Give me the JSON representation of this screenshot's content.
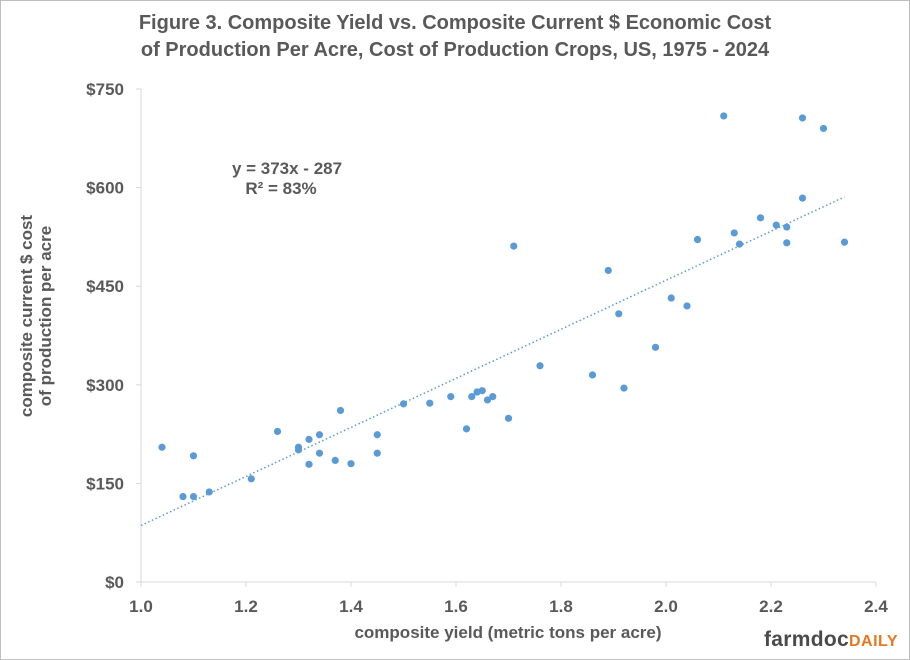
{
  "chart_data": {
    "type": "scatter",
    "title_lines": [
      "Figure  3. Composite  Yield  vs. Composite  Current  $ Economic  Cost",
      "of  Production  Per Acre,  Cost of Production  Crops,  US, 1975  -  2024"
    ],
    "xlabel": "composite yield (metric tons per acre)",
    "ylabel_lines": [
      "composite current $ cost",
      "of production per acre"
    ],
    "xlim": [
      1.0,
      2.4
    ],
    "ylim": [
      0,
      750
    ],
    "x_ticks": [
      1.0,
      1.2,
      1.4,
      1.6,
      1.8,
      2.0,
      2.2,
      2.4
    ],
    "x_tick_labels": [
      "1.0",
      "1.2",
      "1.4",
      "1.6",
      "1.8",
      "2.0",
      "2.2",
      "2.4"
    ],
    "y_ticks": [
      0,
      150,
      300,
      450,
      600,
      750
    ],
    "y_tick_labels": [
      "$0",
      "$150",
      "$300",
      "$450",
      "$600",
      "$750"
    ],
    "point_color": "#5b9bd5",
    "trend_color": "#5b9bd5",
    "trendline": {
      "slope": 373,
      "intercept": -287,
      "x_range": [
        1.0,
        2.34
      ]
    },
    "equation_lines": [
      "y = 373x - 287",
      "R² = 83%"
    ],
    "points": [
      [
        1.04,
        205
      ],
      [
        1.08,
        130
      ],
      [
        1.1,
        192
      ],
      [
        1.1,
        130
      ],
      [
        1.13,
        137
      ],
      [
        1.21,
        157
      ],
      [
        1.26,
        229
      ],
      [
        1.3,
        205
      ],
      [
        1.3,
        201
      ],
      [
        1.32,
        217
      ],
      [
        1.32,
        179
      ],
      [
        1.34,
        224
      ],
      [
        1.34,
        196
      ],
      [
        1.37,
        185
      ],
      [
        1.38,
        261
      ],
      [
        1.4,
        180
      ],
      [
        1.45,
        224
      ],
      [
        1.45,
        196
      ],
      [
        1.5,
        271
      ],
      [
        1.55,
        272
      ],
      [
        1.59,
        282
      ],
      [
        1.62,
        233
      ],
      [
        1.63,
        282
      ],
      [
        1.64,
        289
      ],
      [
        1.65,
        291
      ],
      [
        1.66,
        277
      ],
      [
        1.67,
        282
      ],
      [
        1.7,
        249
      ],
      [
        1.71,
        511
      ],
      [
        1.76,
        329
      ],
      [
        1.86,
        315
      ],
      [
        1.89,
        474
      ],
      [
        1.91,
        408
      ],
      [
        1.92,
        295
      ],
      [
        1.98,
        357
      ],
      [
        2.01,
        432
      ],
      [
        2.04,
        420
      ],
      [
        2.06,
        521
      ],
      [
        2.11,
        709
      ],
      [
        2.13,
        531
      ],
      [
        2.14,
        514
      ],
      [
        2.18,
        554
      ],
      [
        2.21,
        543
      ],
      [
        2.23,
        540
      ],
      [
        2.23,
        516
      ],
      [
        2.26,
        584
      ],
      [
        2.26,
        706
      ],
      [
        2.3,
        690
      ],
      [
        2.34,
        517
      ]
    ]
  },
  "brand": {
    "main": "farmdoc",
    "accent": "DAILY"
  }
}
